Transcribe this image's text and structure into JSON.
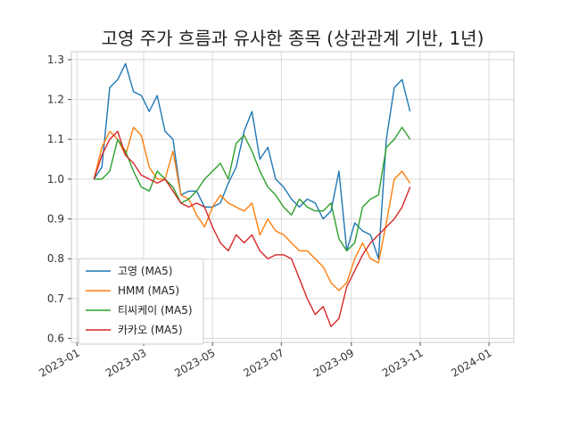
{
  "chart_data": {
    "type": "line",
    "title": "고영 주가 흐름과 유사한 종목 (상관관계 기반, 1년)",
    "xlabel": "",
    "ylabel": "",
    "x_start": "2023-01-16",
    "x_step_days": 7,
    "xlim": [
      "2022-12-27",
      "2024-01-23"
    ],
    "ylim": [
      0.59,
      1.32
    ],
    "x_ticks": [
      "2023-01",
      "2023-03",
      "2023-05",
      "2023-07",
      "2023-09",
      "2023-11",
      "2024-01"
    ],
    "y_ticks": [
      "0.6",
      "0.7",
      "0.8",
      "0.9",
      "1.0",
      "1.1",
      "1.2",
      "1.3"
    ],
    "grid": true,
    "legend_position": "lower-left",
    "series": [
      {
        "name": "고영 (MA5)",
        "color": "#1f77b4",
        "values": [
          1.0,
          1.03,
          1.23,
          1.25,
          1.29,
          1.22,
          1.21,
          1.17,
          1.21,
          1.12,
          1.1,
          0.96,
          0.97,
          0.97,
          0.93,
          0.93,
          0.94,
          0.99,
          1.03,
          1.12,
          1.17,
          1.05,
          1.08,
          1.0,
          0.98,
          0.95,
          0.93,
          0.95,
          0.94,
          0.9,
          0.92,
          1.02,
          0.82,
          0.89,
          0.87,
          0.86,
          0.8,
          1.1,
          1.23,
          1.25,
          1.17
        ]
      },
      {
        "name": "HMM (MA5)",
        "color": "#ff7f0e",
        "values": [
          1.0,
          1.08,
          1.12,
          1.1,
          1.06,
          1.13,
          1.11,
          1.03,
          1.0,
          1.0,
          1.07,
          0.96,
          0.95,
          0.91,
          0.88,
          0.93,
          0.96,
          0.94,
          0.93,
          0.92,
          0.94,
          0.86,
          0.9,
          0.87,
          0.86,
          0.84,
          0.82,
          0.82,
          0.8,
          0.78,
          0.74,
          0.72,
          0.74,
          0.8,
          0.84,
          0.8,
          0.79,
          0.89,
          1.0,
          1.02,
          0.99
        ]
      },
      {
        "name": "티씨케이 (MA5)",
        "color": "#2ca02c",
        "values": [
          1.0,
          1.0,
          1.02,
          1.1,
          1.07,
          1.02,
          0.98,
          0.97,
          1.02,
          1.0,
          0.98,
          0.94,
          0.95,
          0.97,
          1.0,
          1.02,
          1.04,
          1.0,
          1.09,
          1.11,
          1.07,
          1.02,
          0.98,
          0.96,
          0.93,
          0.91,
          0.95,
          0.93,
          0.92,
          0.92,
          0.94,
          0.85,
          0.82,
          0.84,
          0.93,
          0.95,
          0.96,
          1.08,
          1.1,
          1.13,
          1.1
        ]
      },
      {
        "name": "카카오 (MA5)",
        "color": "#d62728",
        "values": [
          1.0,
          1.06,
          1.1,
          1.12,
          1.06,
          1.04,
          1.01,
          1.0,
          0.99,
          1.0,
          0.97,
          0.94,
          0.93,
          0.94,
          0.93,
          0.88,
          0.84,
          0.82,
          0.86,
          0.84,
          0.86,
          0.82,
          0.8,
          0.81,
          0.81,
          0.8,
          0.75,
          0.7,
          0.66,
          0.68,
          0.63,
          0.65,
          0.73,
          0.77,
          0.81,
          0.84,
          0.86,
          0.88,
          0.9,
          0.93,
          0.98
        ]
      }
    ]
  }
}
